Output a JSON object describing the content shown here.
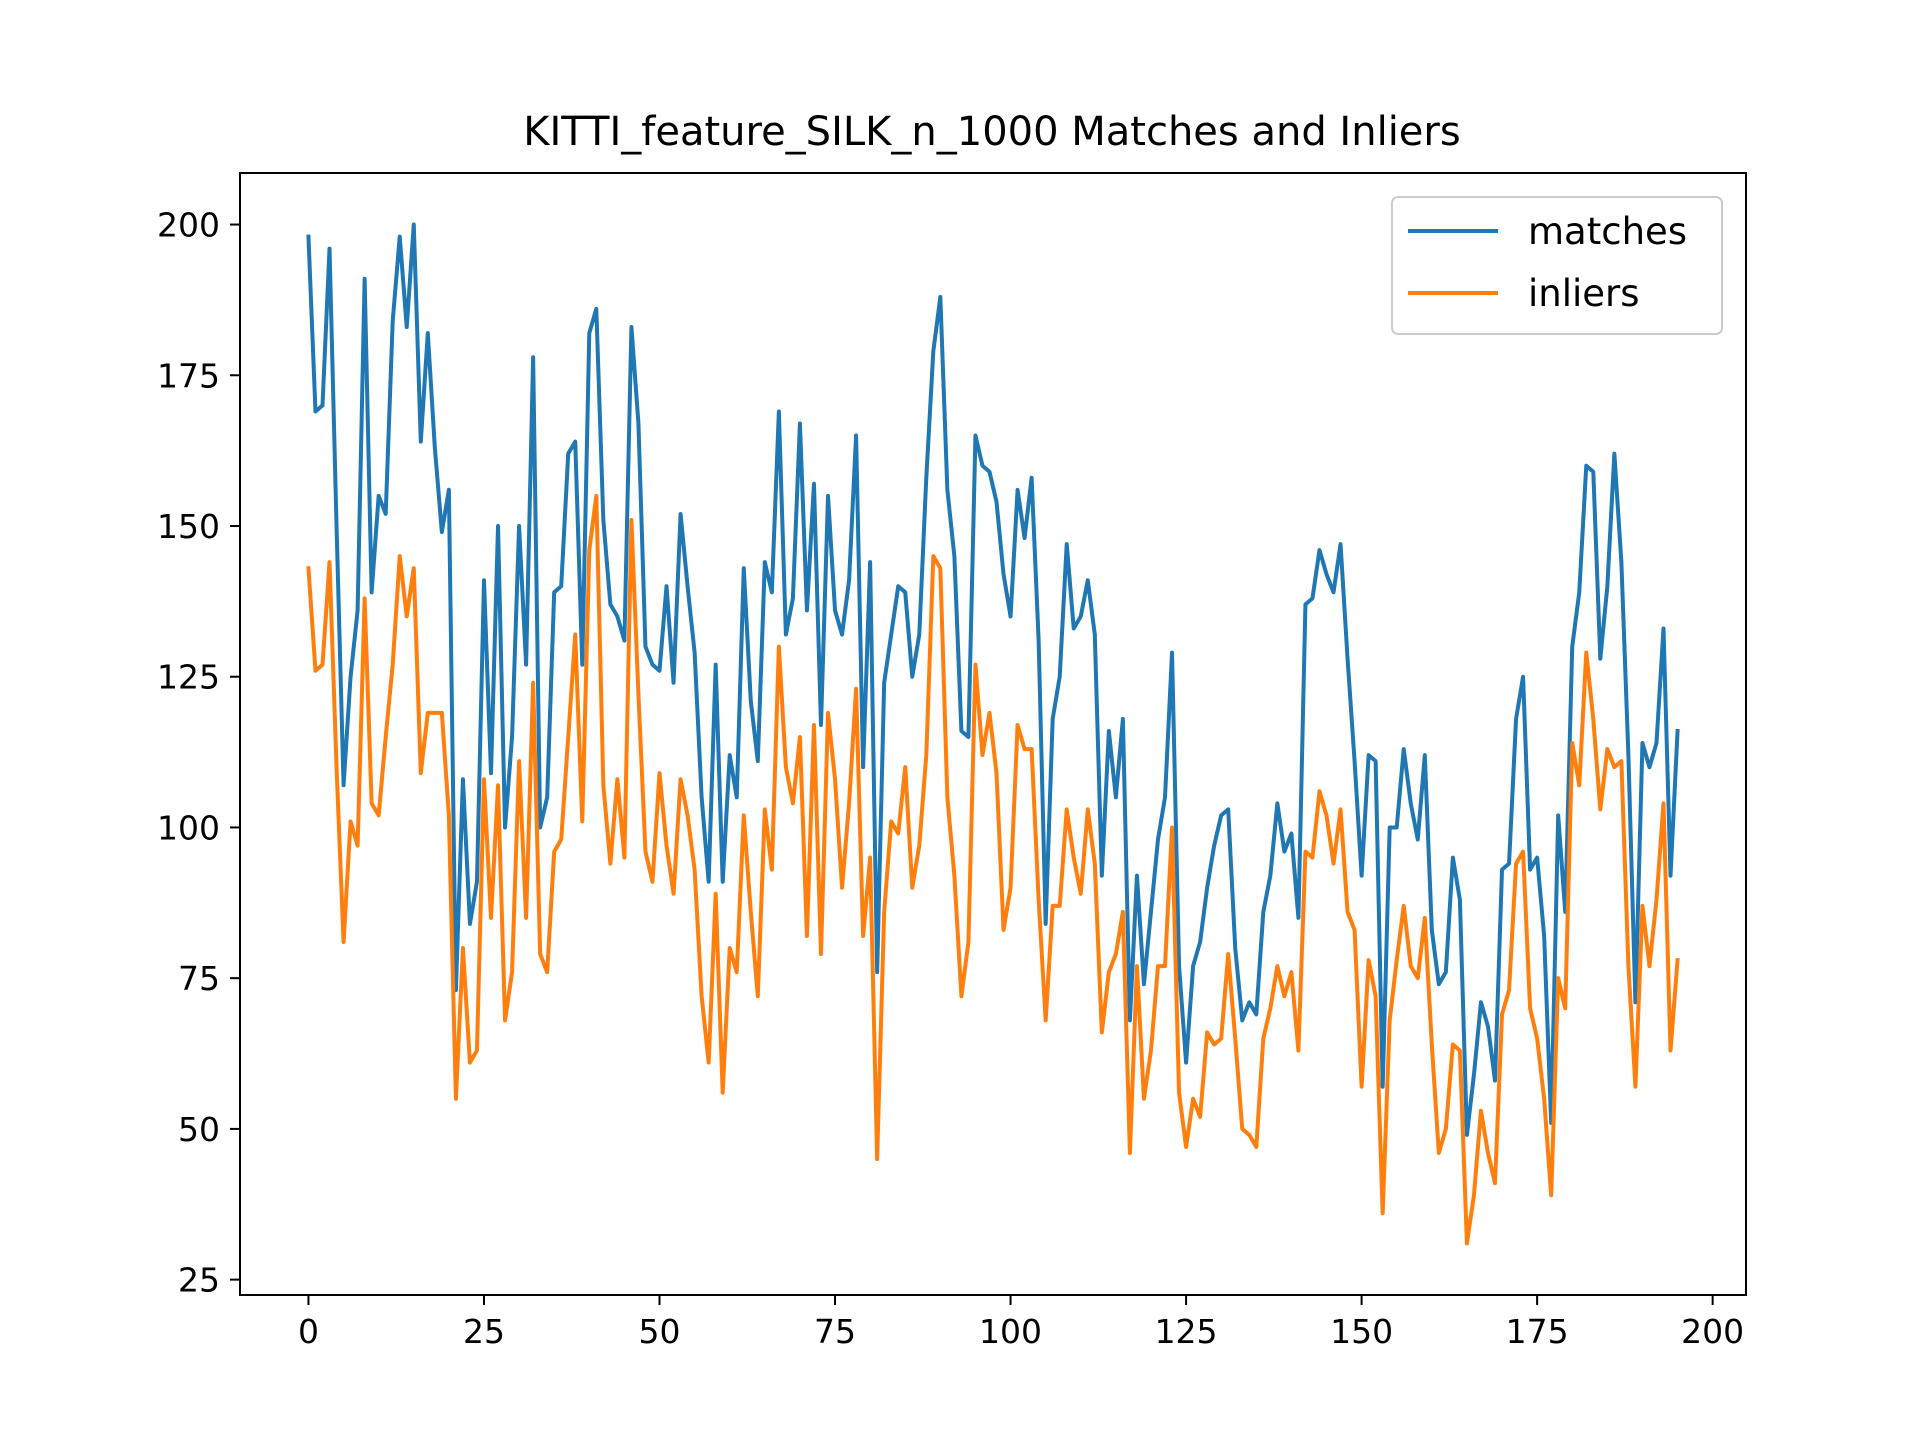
{
  "chart_data": {
    "type": "line",
    "title": "KITTI_feature_SILK_n_1000 Matches and Inliers",
    "xlabel": "",
    "ylabel": "",
    "xlim": [
      -9.75,
      204.75
    ],
    "ylim": [
      22.45,
      208.55
    ],
    "xticks": [
      0,
      25,
      50,
      75,
      100,
      125,
      150,
      175,
      200
    ],
    "yticks": [
      25,
      50,
      75,
      100,
      125,
      150,
      175,
      200
    ],
    "grid": false,
    "legend_position": "top-right",
    "series": [
      {
        "name": "matches",
        "color": "#1f77b4",
        "values": [
          198,
          169,
          170,
          196,
          150,
          107,
          125,
          136,
          191,
          139,
          155,
          152,
          184,
          198,
          183,
          200,
          164,
          182,
          163,
          149,
          156,
          73,
          108,
          84,
          91,
          141,
          109,
          150,
          100,
          115,
          150,
          127,
          178,
          100,
          105,
          139,
          140,
          162,
          164,
          127,
          182,
          186,
          151,
          137,
          135,
          131,
          183,
          167,
          130,
          127,
          126,
          140,
          124,
          152,
          140,
          129,
          105,
          91,
          127,
          91,
          112,
          105,
          143,
          121,
          111,
          144,
          139,
          169,
          132,
          138,
          167,
          136,
          157,
          117,
          155,
          136,
          132,
          141,
          165,
          110,
          144,
          76,
          124,
          132,
          140,
          139,
          125,
          132,
          158,
          179,
          188,
          156,
          145,
          116,
          115,
          165,
          160,
          159,
          154,
          142,
          135,
          156,
          148,
          158,
          131,
          84,
          118,
          125,
          147,
          133,
          135,
          141,
          132,
          92,
          116,
          105,
          118,
          68,
          92,
          74,
          86,
          98,
          105,
          129,
          77,
          61,
          77,
          81,
          90,
          97,
          102,
          103,
          80,
          68,
          71,
          69,
          86,
          92,
          104,
          96,
          99,
          85,
          137,
          138,
          146,
          142,
          139,
          147,
          128,
          111,
          92,
          112,
          111,
          57,
          100,
          100,
          113,
          104,
          98,
          112,
          83,
          74,
          76,
          95,
          88,
          49,
          59,
          71,
          67,
          58,
          93,
          94,
          118,
          125,
          93,
          95,
          82,
          51,
          102,
          86,
          130,
          139,
          160,
          159,
          128,
          140,
          162,
          144,
          112,
          71,
          114,
          110,
          114,
          133,
          92,
          116
        ]
      },
      {
        "name": "inliers",
        "color": "#ff7f0e",
        "values": [
          143,
          126,
          127,
          144,
          110,
          81,
          101,
          97,
          138,
          104,
          102,
          115,
          127,
          145,
          135,
          143,
          109,
          119,
          119,
          119,
          102,
          55,
          80,
          61,
          63,
          108,
          85,
          107,
          68,
          76,
          111,
          85,
          124,
          79,
          76,
          96,
          98,
          115,
          132,
          101,
          146,
          155,
          107,
          94,
          108,
          95,
          151,
          122,
          96,
          91,
          109,
          97,
          89,
          108,
          102,
          93,
          72,
          61,
          89,
          56,
          80,
          76,
          102,
          86,
          72,
          103,
          93,
          130,
          110,
          104,
          115,
          82,
          117,
          79,
          119,
          108,
          90,
          104,
          123,
          82,
          95,
          45,
          86,
          101,
          99,
          110,
          90,
          97,
          112,
          145,
          143,
          105,
          92,
          72,
          81,
          127,
          112,
          119,
          109,
          83,
          90,
          117,
          113,
          113,
          88,
          68,
          87,
          87,
          103,
          95,
          89,
          103,
          94,
          66,
          76,
          79,
          86,
          46,
          77,
          55,
          63,
          77,
          77,
          100,
          56,
          47,
          55,
          52,
          66,
          64,
          65,
          79,
          65,
          50,
          49,
          47,
          65,
          70,
          77,
          72,
          76,
          63,
          96,
          95,
          106,
          102,
          94,
          103,
          86,
          83,
          57,
          78,
          72,
          36,
          68,
          78,
          87,
          77,
          75,
          85,
          64,
          46,
          50,
          64,
          63,
          31,
          39,
          53,
          46,
          41,
          69,
          73,
          94,
          96,
          70,
          65,
          55,
          39,
          75,
          70,
          114,
          107,
          129,
          118,
          103,
          113,
          110,
          111,
          77,
          57,
          87,
          77,
          88,
          104,
          63,
          78
        ]
      }
    ]
  }
}
